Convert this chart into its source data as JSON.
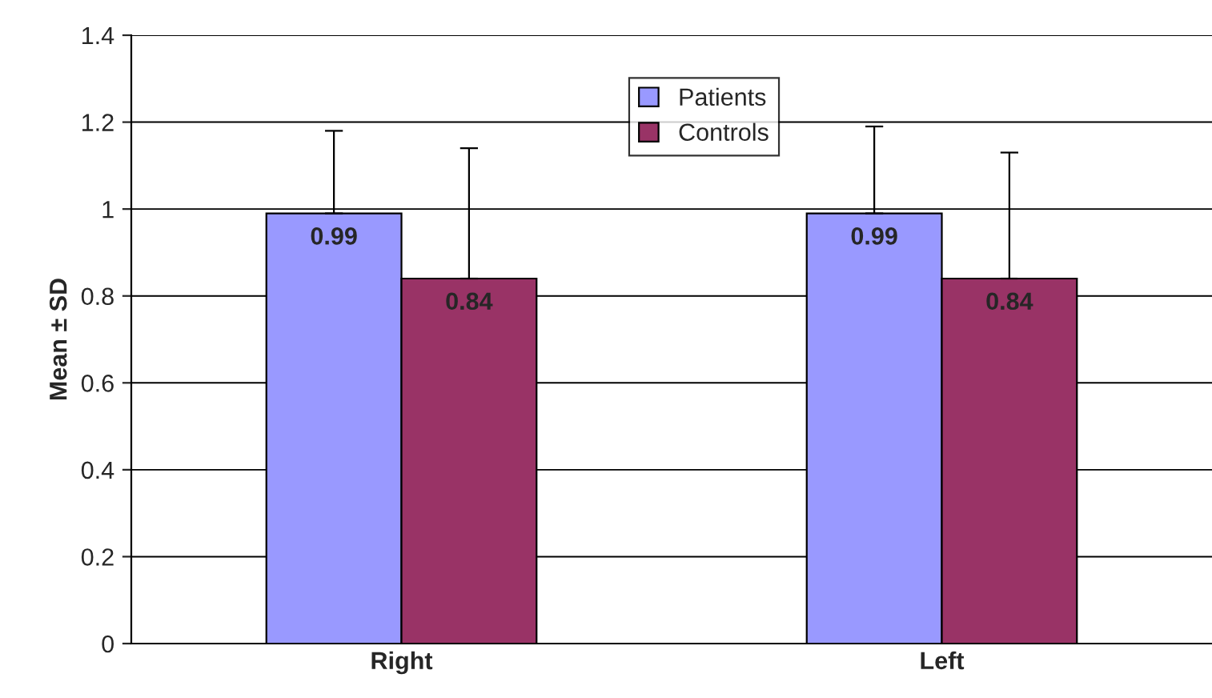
{
  "chart_data": {
    "type": "bar",
    "ylabel": "Mean ± SD",
    "categories": [
      "Right",
      "Left"
    ],
    "series": [
      {
        "name": "Patients",
        "color": "#9999ff",
        "values": [
          0.99,
          0.99
        ],
        "errors": [
          [
            0.99,
            1.18
          ],
          [
            0.99,
            1.19
          ]
        ]
      },
      {
        "name": "Controls",
        "color": "#993366",
        "values": [
          0.84,
          0.84
        ],
        "errors": [
          [
            0.84,
            1.14
          ],
          [
            0.84,
            1.13
          ]
        ]
      }
    ],
    "ylim": [
      0,
      1.4
    ],
    "yticks": [
      0,
      0.2,
      0.4,
      0.6,
      0.8,
      1,
      1.2,
      1.4
    ],
    "grid": "y",
    "legend": "top",
    "data_labels": true
  }
}
